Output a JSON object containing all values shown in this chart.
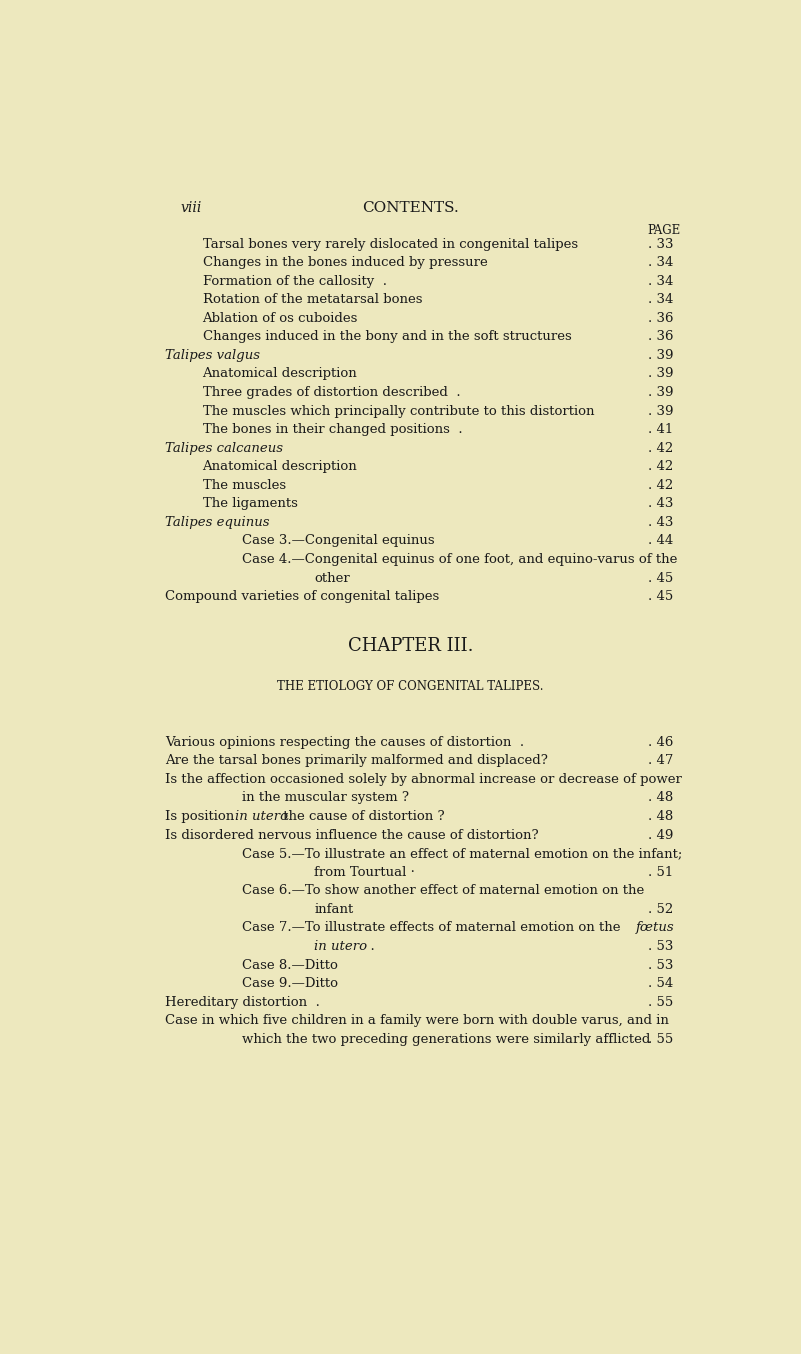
{
  "bg_color": "#EDE8BE",
  "page_num": "viii",
  "header": "CONTENTS.",
  "page_label": "PAGE",
  "entries": [
    {
      "indent": 1,
      "text": "Tarsal bones very rarely dislocated in congenital talipes",
      "dots": true,
      "page": "33",
      "italic": false,
      "special": null
    },
    {
      "indent": 1,
      "text": "Changes in the bones induced by pressure",
      "dots": true,
      "page": "34",
      "italic": false,
      "special": null
    },
    {
      "indent": 1,
      "text": "Formation of the callosity  .",
      "dots": true,
      "page": "34",
      "italic": false,
      "special": null
    },
    {
      "indent": 1,
      "text": "Rotation of the metatarsal bones",
      "dots": true,
      "page": "34",
      "italic": false,
      "special": null
    },
    {
      "indent": 1,
      "text": "Ablation of os cuboides",
      "dots": true,
      "page": "36",
      "italic": false,
      "special": null
    },
    {
      "indent": 1,
      "text": "Changes induced in the bony and in the soft structures",
      "dots": true,
      "page": "36",
      "italic": false,
      "special": null
    },
    {
      "indent": 0,
      "text": "Talipes valgus",
      "dots": true,
      "page": "39",
      "italic": true,
      "special": null
    },
    {
      "indent": 1,
      "text": "Anatomical description",
      "dots": true,
      "page": "39",
      "italic": false,
      "special": null
    },
    {
      "indent": 1,
      "text": "Three grades of distortion described  .",
      "dots": true,
      "page": "39",
      "italic": false,
      "special": null
    },
    {
      "indent": 1,
      "text": "The muscles which principally contribute to this distortion",
      "dots": true,
      "page": "39",
      "italic": false,
      "special": null
    },
    {
      "indent": 1,
      "text": "The bones in their changed positions  .",
      "dots": true,
      "page": "41",
      "italic": false,
      "special": null
    },
    {
      "indent": 0,
      "text": "Talipes calcaneus",
      "dots": true,
      "page": "42",
      "italic": true,
      "special": null
    },
    {
      "indent": 1,
      "text": "Anatomical description",
      "dots": true,
      "page": "42",
      "italic": false,
      "special": null
    },
    {
      "indent": 1,
      "text": "The muscles",
      "dots": true,
      "page": "42",
      "italic": false,
      "special": null
    },
    {
      "indent": 1,
      "text": "The ligaments",
      "dots": true,
      "page": "43",
      "italic": false,
      "special": null
    },
    {
      "indent": 0,
      "text": "Talipes equinus",
      "dots": true,
      "page": "43",
      "italic": true,
      "special": null
    },
    {
      "indent": 2,
      "text": "Case 3.—Congenital equinus",
      "dots": true,
      "page": "44",
      "italic": false,
      "special": null
    },
    {
      "indent": 2,
      "text": "Case 4.—Congenital equinus of one foot, and equino-varus of the",
      "dots": false,
      "page": "",
      "italic": false,
      "special": null
    },
    {
      "indent": 3,
      "text": "other",
      "dots": true,
      "page": "45",
      "italic": false,
      "special": null
    },
    {
      "indent": 0,
      "text": "Compound varieties of congenital talipes",
      "dots": true,
      "page": "45",
      "italic": false,
      "special": null
    },
    {
      "indent": -1,
      "text": "",
      "dots": false,
      "page": "",
      "italic": false,
      "special": null
    },
    {
      "indent": -1,
      "text": "",
      "dots": false,
      "page": "",
      "italic": false,
      "special": null
    },
    {
      "indent": -2,
      "text": "CHAPTER III.",
      "dots": false,
      "page": "",
      "italic": false,
      "special": null
    },
    {
      "indent": -1,
      "text": "",
      "dots": false,
      "page": "",
      "italic": false,
      "special": null
    },
    {
      "indent": -3,
      "text": "THE ETIOLOGY OF CONGENITAL TALIPES.",
      "dots": false,
      "page": "",
      "italic": false,
      "special": null
    },
    {
      "indent": -1,
      "text": "",
      "dots": false,
      "page": "",
      "italic": false,
      "special": null
    },
    {
      "indent": -1,
      "text": "",
      "dots": false,
      "page": "",
      "italic": false,
      "special": null
    },
    {
      "indent": 0,
      "text": "Various opinions respecting the causes of distortion  .",
      "dots": true,
      "page": "46",
      "italic": false,
      "special": null
    },
    {
      "indent": 0,
      "text": "Are the tarsal bones primarily malformed and displaced?",
      "dots": true,
      "page": "47",
      "italic": false,
      "special": null
    },
    {
      "indent": 0,
      "text": "Is the affection occasioned solely by abnormal increase or decrease of power",
      "dots": false,
      "page": "",
      "italic": false,
      "special": null
    },
    {
      "indent": 2,
      "text": "in the muscular system ?",
      "dots": true,
      "page": "48",
      "italic": false,
      "special": null
    },
    {
      "indent": 0,
      "text": "in_utero_line",
      "dots": true,
      "page": "48",
      "italic": false,
      "special": "in_utero_cause"
    },
    {
      "indent": 0,
      "text": "Is disordered nervous influence the cause of distortion?",
      "dots": true,
      "page": "49",
      "italic": false,
      "special": null
    },
    {
      "indent": 2,
      "text": "Case 5.—To illustrate an effect of maternal emotion on the infant;",
      "dots": false,
      "page": "",
      "italic": false,
      "special": null
    },
    {
      "indent": 3,
      "text": "from Tourtual ·",
      "dots": true,
      "page": "51",
      "italic": false,
      "special": null
    },
    {
      "indent": 2,
      "text": "Case 6.—To show another effect of maternal emotion on the",
      "dots": false,
      "page": "",
      "italic": false,
      "special": null
    },
    {
      "indent": 3,
      "text": "infant",
      "dots": true,
      "page": "52",
      "italic": false,
      "special": null
    },
    {
      "indent": 2,
      "text": "foetus_line",
      "dots": false,
      "page": "",
      "italic": false,
      "special": "foetus_line"
    },
    {
      "indent": 3,
      "text": "in_utero_cont",
      "dots": true,
      "page": "53",
      "italic": false,
      "special": "in_utero_cont"
    },
    {
      "indent": 2,
      "text": "Case 8.—Ditto",
      "dots": true,
      "page": "53",
      "italic": false,
      "special": null
    },
    {
      "indent": 2,
      "text": "Case 9.—Ditto",
      "dots": true,
      "page": "54",
      "italic": false,
      "special": null
    },
    {
      "indent": 0,
      "text": "Hereditary distortion  .",
      "dots": true,
      "page": "55",
      "italic": false,
      "special": null
    },
    {
      "indent": 0,
      "text": "Case in which five children in a family were born with double varus, and in",
      "dots": false,
      "page": "",
      "italic": false,
      "special": null
    },
    {
      "indent": 2,
      "text": "which the two preceding generations were similarly afflicted",
      "dots": true,
      "page": "55",
      "italic": false,
      "special": null
    }
  ]
}
